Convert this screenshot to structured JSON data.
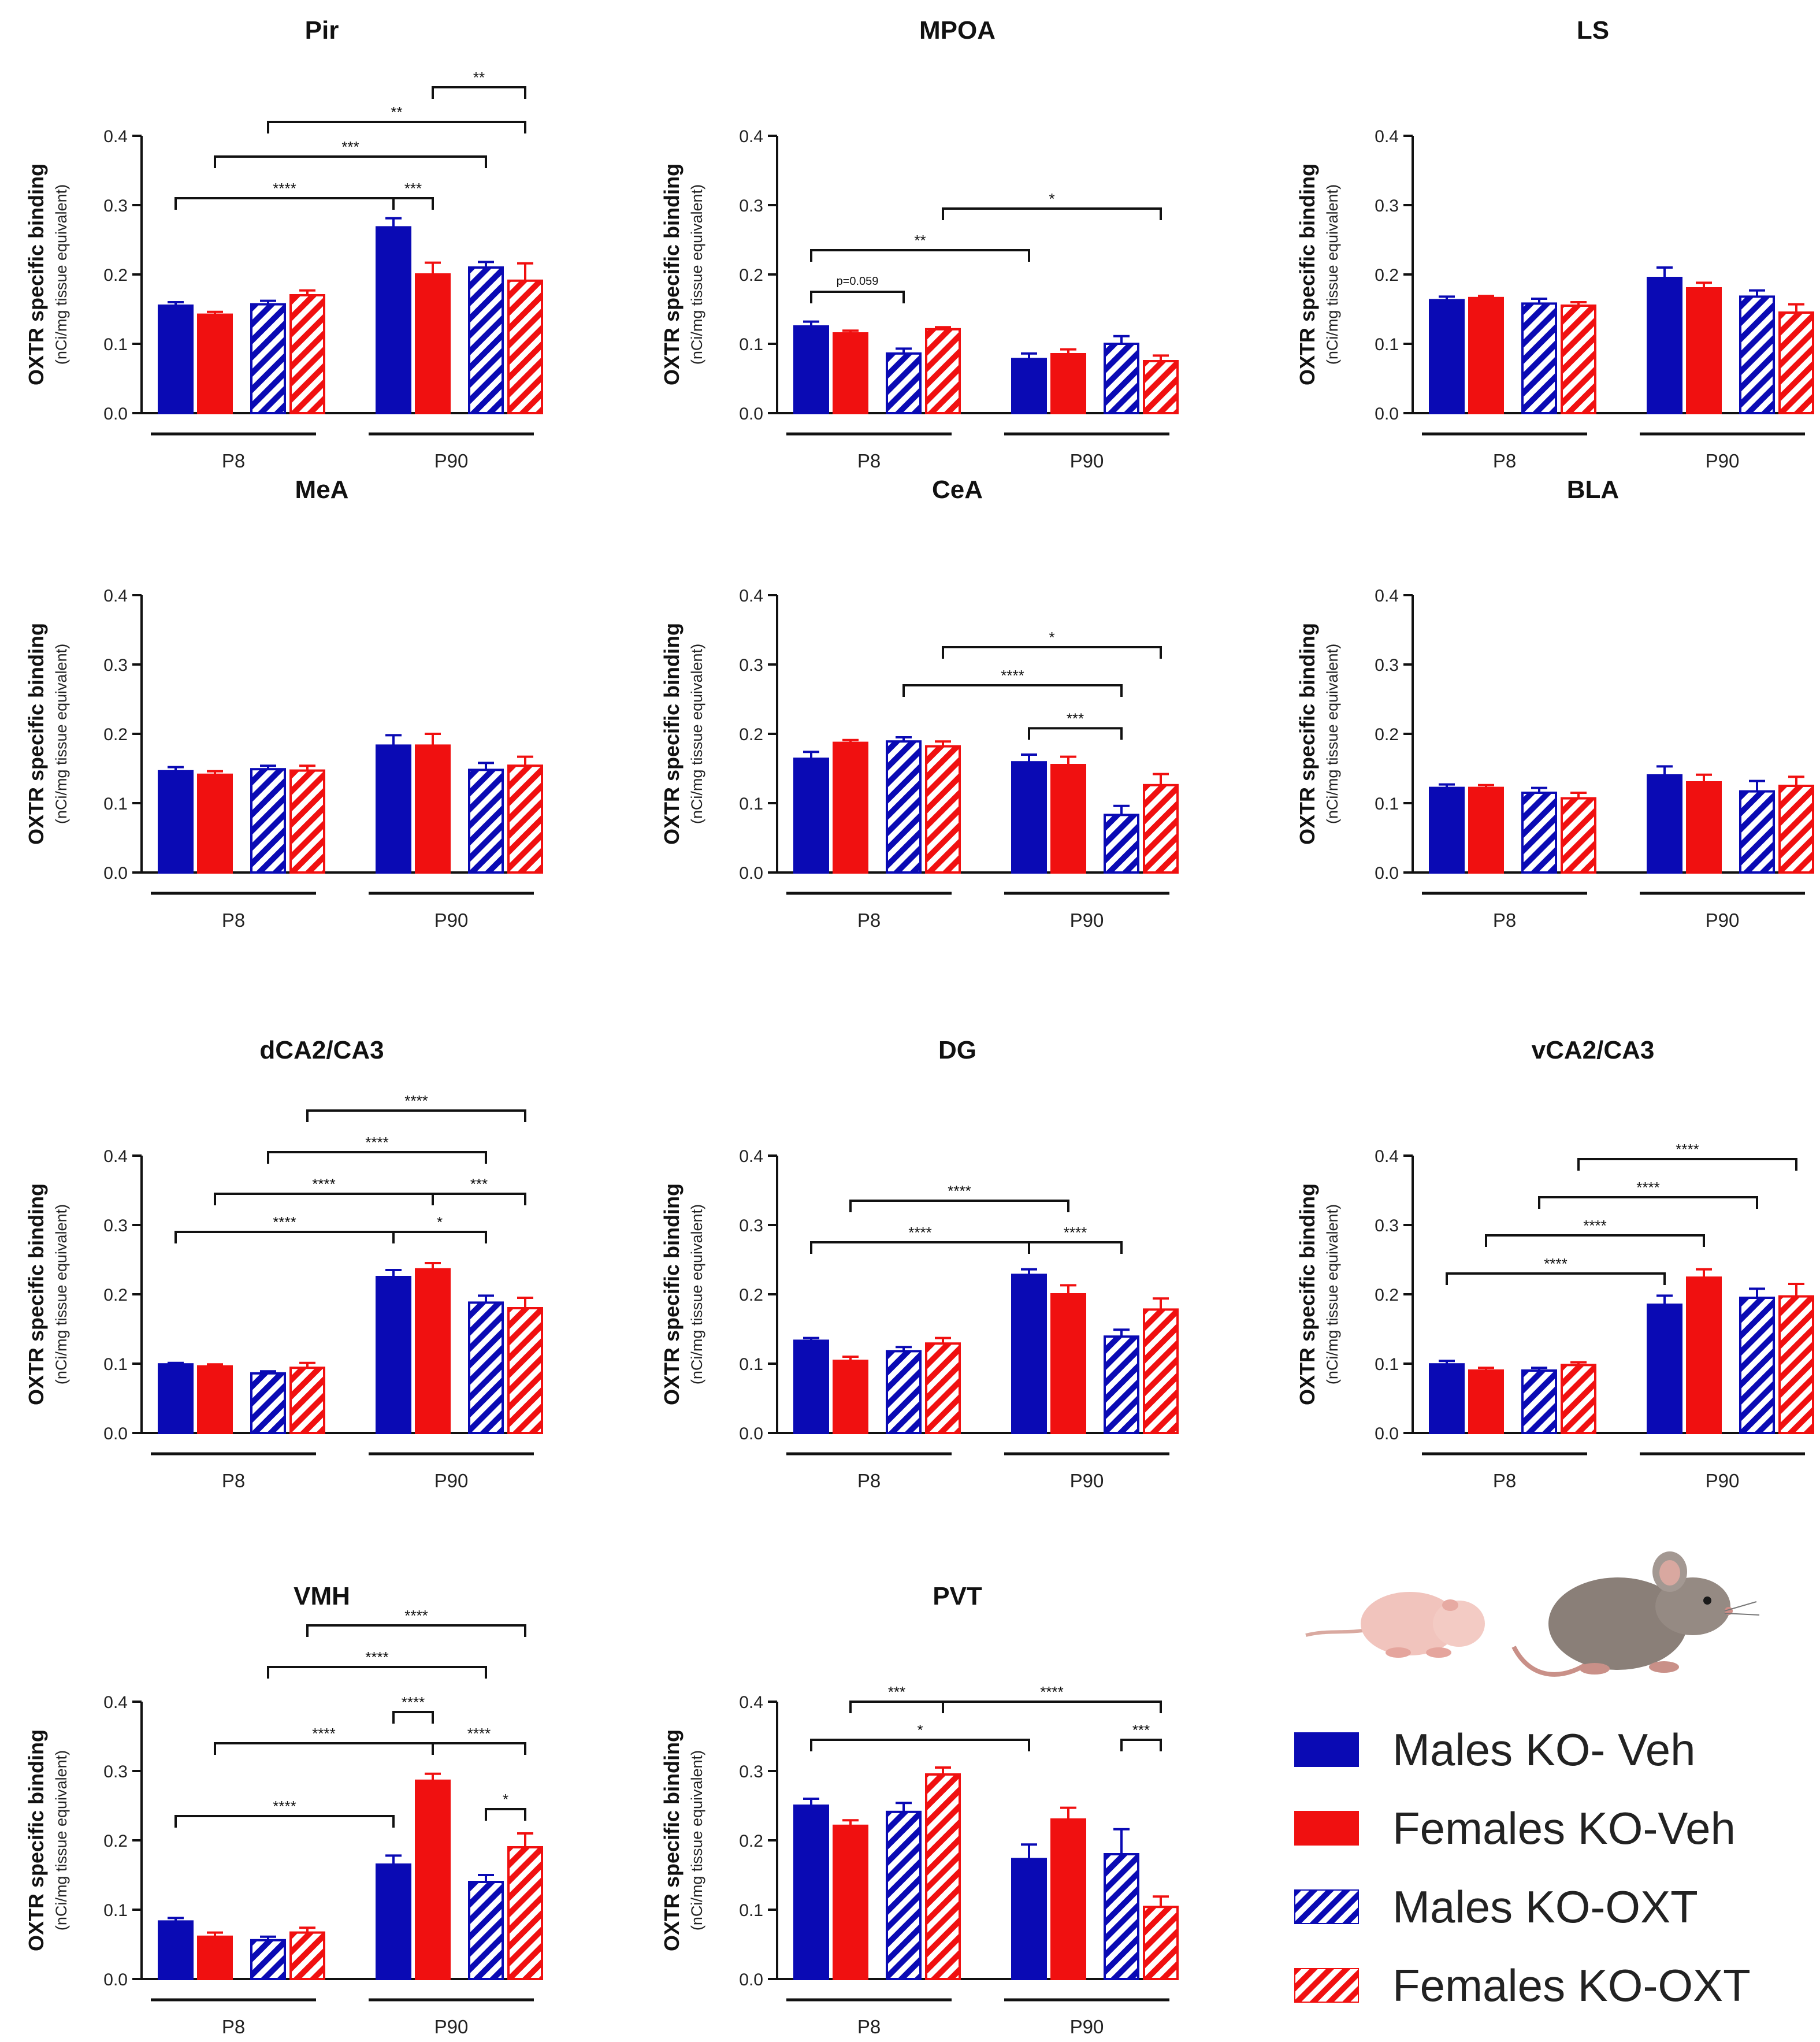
{
  "figure": {
    "y_axis_label": "OXTR specific binding",
    "y_axis_sublabel": "(nCi/mg tissue equivalent)",
    "y_ticks": [
      "0.0",
      "0.1",
      "0.2",
      "0.3",
      "0.4"
    ],
    "group_labels": [
      "P8",
      "P90"
    ],
    "colors": {
      "males": "#0a0ab4",
      "females": "#f01010",
      "axis": "#111111"
    }
  },
  "legend": {
    "items": [
      {
        "label": "Males KO- Veh",
        "color": "#0a0ab4",
        "pattern": "solid"
      },
      {
        "label": "Females KO-Veh",
        "color": "#f01010",
        "pattern": "solid"
      },
      {
        "label": "Males KO-OXT",
        "color": "#0a0ab4",
        "pattern": "hatched"
      },
      {
        "label": "Females KO-OXT",
        "color": "#f01010",
        "pattern": "hatched"
      }
    ]
  },
  "chart_data": [
    {
      "type": "bar",
      "title": "Pir",
      "ylabel": "OXTR specific binding (nCi/mg tissue equivalent)",
      "ylim": [
        0,
        0.4
      ],
      "categories": [
        "P8",
        "P90"
      ],
      "series": [
        {
          "name": "Males KO- Veh",
          "values": [
            0.155,
            0.268
          ],
          "errors": [
            0.005,
            0.013
          ]
        },
        {
          "name": "Females KO-Veh",
          "values": [
            0.142,
            0.2
          ],
          "errors": [
            0.004,
            0.017
          ]
        },
        {
          "name": "Males KO-OXT",
          "values": [
            0.157,
            0.21
          ],
          "errors": [
            0.005,
            0.008
          ]
        },
        {
          "name": "Females KO-OXT",
          "values": [
            0.17,
            0.191
          ],
          "errors": [
            0.007,
            0.025
          ]
        }
      ],
      "significance": [
        {
          "from": 5,
          "to": 7,
          "label": "**",
          "level": 0.47
        },
        {
          "from": 2,
          "to": 7,
          "label": "**",
          "level": 0.42
        },
        {
          "from": 1,
          "to": 6,
          "label": "***",
          "level": 0.37
        },
        {
          "from": 0,
          "to": 4,
          "label": "****",
          "level": 0.31
        },
        {
          "from": 4,
          "to": 5,
          "label": "***",
          "level": 0.31
        }
      ]
    },
    {
      "type": "bar",
      "title": "MPOA",
      "ylabel": "OXTR specific binding (nCi/mg tissue equivalent)",
      "ylim": [
        0,
        0.4
      ],
      "categories": [
        "P8",
        "P90"
      ],
      "series": [
        {
          "name": "Males KO- Veh",
          "values": [
            0.125,
            0.078
          ],
          "errors": [
            0.007,
            0.008
          ]
        },
        {
          "name": "Females KO-Veh",
          "values": [
            0.115,
            0.085
          ],
          "errors": [
            0.004,
            0.007
          ]
        },
        {
          "name": "Males KO-OXT",
          "values": [
            0.086,
            0.1
          ],
          "errors": [
            0.007,
            0.011
          ]
        },
        {
          "name": "Females KO-OXT",
          "values": [
            0.121,
            0.075
          ],
          "errors": [
            0.003,
            0.008
          ]
        }
      ],
      "significance": [
        {
          "from": 3,
          "to": 7,
          "label": "*",
          "level": 0.295
        },
        {
          "from": 0,
          "to": 4,
          "label": "**",
          "level": 0.235
        },
        {
          "from": 0,
          "to": 2,
          "label": "p=0.059",
          "level": 0.175
        }
      ]
    },
    {
      "type": "bar",
      "title": "LS",
      "ylabel": "OXTR specific binding (nCi/mg tissue equivalent)",
      "ylim": [
        0,
        0.4
      ],
      "categories": [
        "P8",
        "P90"
      ],
      "series": [
        {
          "name": "Males KO- Veh",
          "values": [
            0.163,
            0.195
          ],
          "errors": [
            0.005,
            0.015
          ]
        },
        {
          "name": "Females KO-Veh",
          "values": [
            0.166,
            0.18
          ],
          "errors": [
            0.003,
            0.008
          ]
        },
        {
          "name": "Males KO-OXT",
          "values": [
            0.158,
            0.168
          ],
          "errors": [
            0.007,
            0.009
          ]
        },
        {
          "name": "Females KO-OXT",
          "values": [
            0.155,
            0.145
          ],
          "errors": [
            0.005,
            0.012
          ]
        }
      ],
      "significance": []
    },
    {
      "type": "bar",
      "title": "MeA",
      "ylabel": "OXTR specific binding (nCi/mg tissue equivalent)",
      "ylim": [
        0,
        0.4
      ],
      "categories": [
        "P8",
        "P90"
      ],
      "series": [
        {
          "name": "Males KO- Veh",
          "values": [
            0.146,
            0.183
          ],
          "errors": [
            0.006,
            0.015
          ]
        },
        {
          "name": "Females KO-Veh",
          "values": [
            0.141,
            0.183
          ],
          "errors": [
            0.005,
            0.017
          ]
        },
        {
          "name": "Males KO-OXT",
          "values": [
            0.149,
            0.148
          ],
          "errors": [
            0.005,
            0.01
          ]
        },
        {
          "name": "Females KO-OXT",
          "values": [
            0.147,
            0.154
          ],
          "errors": [
            0.007,
            0.013
          ]
        }
      ],
      "significance": []
    },
    {
      "type": "bar",
      "title": "CeA",
      "ylabel": "OXTR specific binding (nCi/mg tissue equivalent)",
      "ylim": [
        0,
        0.4
      ],
      "categories": [
        "P8",
        "P90"
      ],
      "series": [
        {
          "name": "Males KO- Veh",
          "values": [
            0.164,
            0.159
          ],
          "errors": [
            0.01,
            0.011
          ]
        },
        {
          "name": "Females KO-Veh",
          "values": [
            0.187,
            0.155
          ],
          "errors": [
            0.004,
            0.012
          ]
        },
        {
          "name": "Males KO-OXT",
          "values": [
            0.189,
            0.083
          ],
          "errors": [
            0.006,
            0.013
          ]
        },
        {
          "name": "Females KO-OXT",
          "values": [
            0.182,
            0.126
          ],
          "errors": [
            0.007,
            0.016
          ]
        }
      ],
      "significance": [
        {
          "from": 3,
          "to": 7,
          "label": "*",
          "level": 0.325
        },
        {
          "from": 2,
          "to": 6,
          "label": "****",
          "level": 0.27
        },
        {
          "from": 4,
          "to": 6,
          "label": "***",
          "level": 0.208
        }
      ]
    },
    {
      "type": "bar",
      "title": "BLA",
      "ylabel": "OXTR specific binding (nCi/mg tissue equivalent)",
      "ylim": [
        0,
        0.4
      ],
      "categories": [
        "P8",
        "P90"
      ],
      "series": [
        {
          "name": "Males KO- Veh",
          "values": [
            0.122,
            0.14
          ],
          "errors": [
            0.005,
            0.013
          ]
        },
        {
          "name": "Females KO-Veh",
          "values": [
            0.122,
            0.13
          ],
          "errors": [
            0.004,
            0.011
          ]
        },
        {
          "name": "Males KO-OXT",
          "values": [
            0.115,
            0.117
          ],
          "errors": [
            0.007,
            0.015
          ]
        },
        {
          "name": "Females KO-OXT",
          "values": [
            0.107,
            0.125
          ],
          "errors": [
            0.008,
            0.013
          ]
        }
      ],
      "significance": []
    },
    {
      "type": "bar",
      "title": "dCA2/CA3",
      "ylabel": "OXTR specific binding (nCi/mg tissue equivalent)",
      "ylim": [
        0,
        0.4
      ],
      "categories": [
        "P8",
        "P90"
      ],
      "series": [
        {
          "name": "Males KO- Veh",
          "values": [
            0.099,
            0.225
          ],
          "errors": [
            0.002,
            0.01
          ]
        },
        {
          "name": "Females KO-Veh",
          "values": [
            0.096,
            0.236
          ],
          "errors": [
            0.003,
            0.009
          ]
        },
        {
          "name": "Males KO-OXT",
          "values": [
            0.086,
            0.188
          ],
          "errors": [
            0.003,
            0.01
          ]
        },
        {
          "name": "Females KO-OXT",
          "values": [
            0.094,
            0.18
          ],
          "errors": [
            0.007,
            0.015
          ]
        }
      ],
      "significance": [
        {
          "from": 3,
          "to": 7,
          "label": "****",
          "level": 0.465
        },
        {
          "from": 2,
          "to": 6,
          "label": "****",
          "level": 0.405
        },
        {
          "from": 1,
          "to": 5,
          "label": "****",
          "level": 0.345
        },
        {
          "from": 5,
          "to": 7,
          "label": "***",
          "level": 0.345
        },
        {
          "from": 0,
          "to": 4,
          "label": "****",
          "level": 0.29
        },
        {
          "from": 4,
          "to": 6,
          "label": "*",
          "level": 0.29
        }
      ]
    },
    {
      "type": "bar",
      "title": "DG",
      "ylabel": "OXTR specific binding (nCi/mg tissue equivalent)",
      "ylim": [
        0,
        0.4
      ],
      "categories": [
        "P8",
        "P90"
      ],
      "series": [
        {
          "name": "Males KO- Veh",
          "values": [
            0.133,
            0.228
          ],
          "errors": [
            0.004,
            0.008
          ]
        },
        {
          "name": "Females KO-Veh",
          "values": [
            0.104,
            0.2
          ],
          "errors": [
            0.006,
            0.013
          ]
        },
        {
          "name": "Males KO-OXT",
          "values": [
            0.118,
            0.139
          ],
          "errors": [
            0.006,
            0.01
          ]
        },
        {
          "name": "Females KO-OXT",
          "values": [
            0.129,
            0.178
          ],
          "errors": [
            0.008,
            0.016
          ]
        }
      ],
      "significance": [
        {
          "from": 1,
          "to": 5,
          "label": "****",
          "level": 0.335
        },
        {
          "from": 0,
          "to": 4,
          "label": "****",
          "level": 0.275
        },
        {
          "from": 4,
          "to": 6,
          "label": "****",
          "level": 0.275
        }
      ]
    },
    {
      "type": "bar",
      "title": "vCA2/CA3",
      "ylabel": "OXTR specific binding (nCi/mg tissue equivalent)",
      "ylim": [
        0,
        0.4
      ],
      "categories": [
        "P8",
        "P90"
      ],
      "series": [
        {
          "name": "Males KO- Veh",
          "values": [
            0.099,
            0.185
          ],
          "errors": [
            0.005,
            0.013
          ]
        },
        {
          "name": "Females KO-Veh",
          "values": [
            0.09,
            0.224
          ],
          "errors": [
            0.004,
            0.012
          ]
        },
        {
          "name": "Males KO-OXT",
          "values": [
            0.09,
            0.195
          ],
          "errors": [
            0.004,
            0.013
          ]
        },
        {
          "name": "Females KO-OXT",
          "values": [
            0.098,
            0.197
          ],
          "errors": [
            0.004,
            0.018
          ]
        }
      ],
      "significance": [
        {
          "from": 3,
          "to": 7,
          "label": "****",
          "level": 0.395
        },
        {
          "from": 2,
          "to": 6,
          "label": "****",
          "level": 0.34
        },
        {
          "from": 1,
          "to": 5,
          "label": "****",
          "level": 0.285
        },
        {
          "from": 0,
          "to": 4,
          "label": "****",
          "level": 0.23
        }
      ]
    },
    {
      "type": "bar",
      "title": "VMH",
      "ylabel": "OXTR specific binding (nCi/mg tissue equivalent)",
      "ylim": [
        0,
        0.4
      ],
      "categories": [
        "P8",
        "P90"
      ],
      "series": [
        {
          "name": "Males KO- Veh",
          "values": [
            0.083,
            0.165
          ],
          "errors": [
            0.005,
            0.013
          ]
        },
        {
          "name": "Females KO-Veh",
          "values": [
            0.061,
            0.286
          ],
          "errors": [
            0.006,
            0.01
          ]
        },
        {
          "name": "Males KO-OXT",
          "values": [
            0.056,
            0.14
          ],
          "errors": [
            0.005,
            0.01
          ]
        },
        {
          "name": "Females KO-OXT",
          "values": [
            0.067,
            0.19
          ],
          "errors": [
            0.007,
            0.02
          ]
        }
      ],
      "significance": [
        {
          "from": 3,
          "to": 7,
          "label": "****",
          "level": 0.51
        },
        {
          "from": 2,
          "to": 6,
          "label": "****",
          "level": 0.45
        },
        {
          "from": 4,
          "to": 5,
          "label": "****",
          "level": 0.385
        },
        {
          "from": 1,
          "to": 5,
          "label": "****",
          "level": 0.34
        },
        {
          "from": 5,
          "to": 7,
          "label": "****",
          "level": 0.34
        },
        {
          "from": 0,
          "to": 4,
          "label": "****",
          "level": 0.235
        },
        {
          "from": 6,
          "to": 7,
          "label": "*",
          "level": 0.245
        }
      ]
    },
    {
      "type": "bar",
      "title": "PVT",
      "ylabel": "OXTR specific binding (nCi/mg tissue equivalent)",
      "ylim": [
        0,
        0.4
      ],
      "categories": [
        "P8",
        "P90"
      ],
      "series": [
        {
          "name": "Males KO- Veh",
          "values": [
            0.25,
            0.173
          ],
          "errors": [
            0.01,
            0.021
          ]
        },
        {
          "name": "Females KO-Veh",
          "values": [
            0.221,
            0.23
          ],
          "errors": [
            0.008,
            0.017
          ]
        },
        {
          "name": "Males KO-OXT",
          "values": [
            0.241,
            0.18
          ],
          "errors": [
            0.013,
            0.036
          ]
        },
        {
          "name": "Females KO-OXT",
          "values": [
            0.295,
            0.104
          ],
          "errors": [
            0.01,
            0.015
          ]
        }
      ],
      "significance": [
        {
          "from": 1,
          "to": 3,
          "label": "***",
          "level": 0.4
        },
        {
          "from": 3,
          "to": 7,
          "label": "****",
          "level": 0.4
        },
        {
          "from": 0,
          "to": 4,
          "label": "*",
          "level": 0.345
        },
        {
          "from": 6,
          "to": 7,
          "label": "***",
          "level": 0.345
        }
      ]
    }
  ]
}
